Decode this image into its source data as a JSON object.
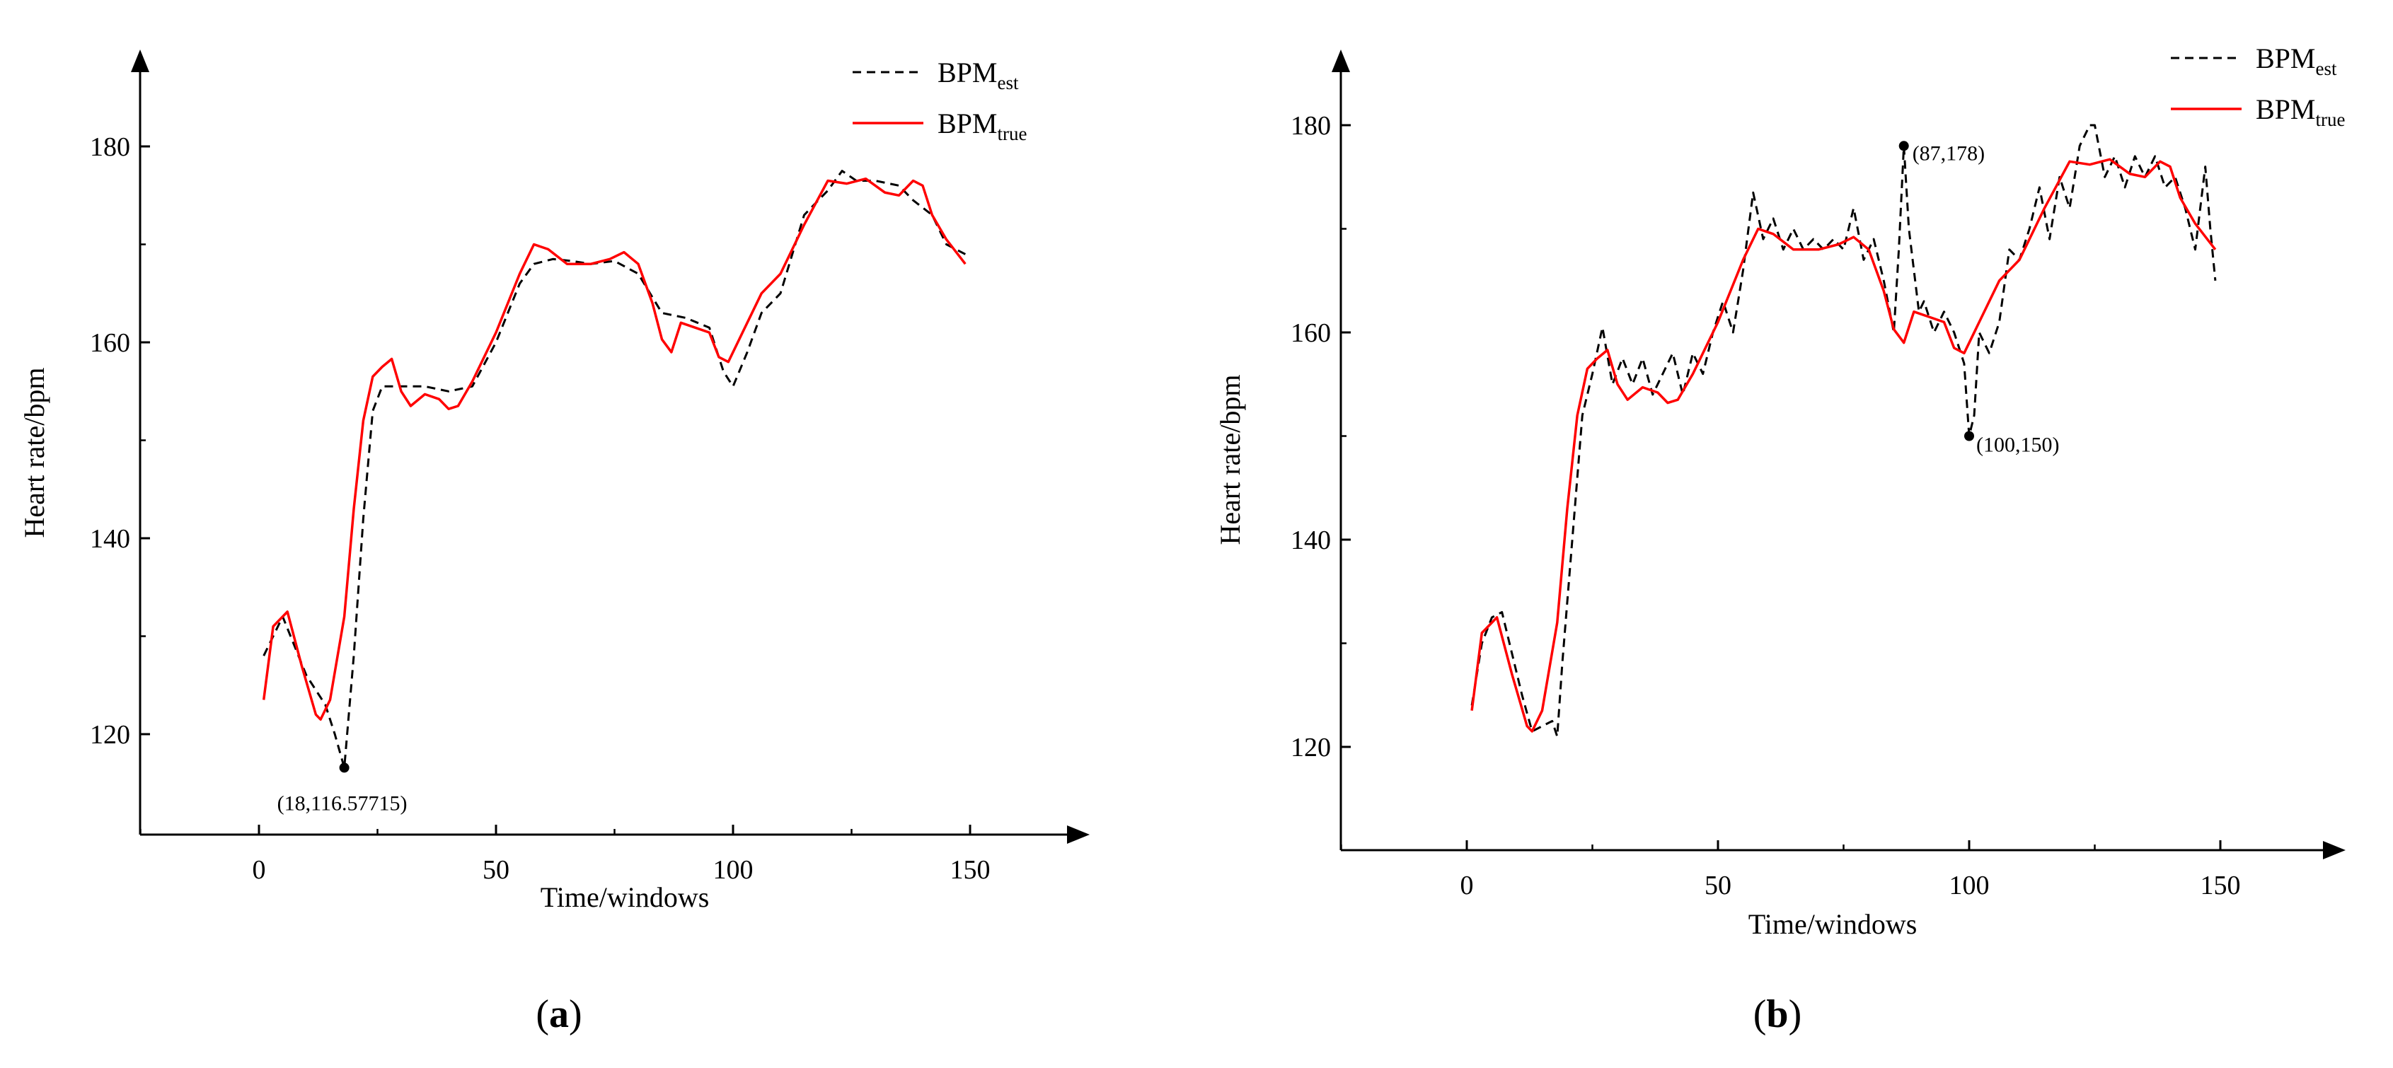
{
  "colors": {
    "est": "#000000",
    "true": "#ff0000",
    "axis": "#000000"
  },
  "chart_data": [
    {
      "type": "line",
      "panel_label": "a",
      "xlabel": "Time/windows",
      "ylabel": "Heart rate/bpm",
      "xlim": [
        -25,
        175
      ],
      "ylim": [
        110,
        190
      ],
      "xticks": [
        0,
        50,
        100,
        150
      ],
      "yticks": [
        120,
        140,
        160,
        180
      ],
      "legend_position": "top-right",
      "series": [
        {
          "name": "BPM",
          "subscript": "est",
          "style": "dashed",
          "color": "#000000",
          "x": [
            1,
            5,
            10,
            14,
            16,
            18,
            20,
            22,
            24,
            26,
            30,
            35,
            40,
            45,
            50,
            55,
            58,
            62,
            66,
            70,
            75,
            80,
            85,
            90,
            95,
            98,
            100,
            103,
            106,
            110,
            115,
            120,
            123,
            126,
            130,
            135,
            138,
            142,
            145,
            149
          ],
          "y": [
            128,
            132,
            126,
            123,
            120,
            116.57715,
            128,
            142,
            153,
            155.5,
            155.5,
            155.5,
            155,
            155.5,
            160,
            166,
            168,
            168.5,
            168.3,
            168,
            168.3,
            167,
            163,
            162.5,
            161.5,
            157,
            155.5,
            159,
            163,
            165,
            173,
            175.5,
            177.5,
            176.5,
            176.5,
            176,
            174.5,
            173,
            170,
            169
          ]
        },
        {
          "name": "BPM",
          "subscript": "true",
          "style": "solid",
          "color": "#ff0000",
          "x": [
            1,
            3,
            6,
            9,
            12,
            13,
            15,
            18,
            20,
            22,
            24,
            26,
            28,
            30,
            32,
            35,
            38,
            40,
            42,
            45,
            50,
            55,
            58,
            61,
            65,
            70,
            74,
            77,
            80,
            83,
            85,
            87,
            89,
            92,
            95,
            97,
            99,
            102,
            106,
            110,
            115,
            120,
            124,
            128,
            132,
            135,
            138,
            140,
            142,
            145,
            149
          ],
          "y": [
            123.5,
            131,
            132.5,
            127,
            122,
            121.5,
            123.5,
            132,
            143,
            152,
            156.5,
            157.5,
            158.3,
            155,
            153.5,
            154.7,
            154.2,
            153.2,
            153.5,
            156,
            161,
            167,
            170,
            169.5,
            168,
            168,
            168.5,
            169.2,
            168,
            164,
            160.3,
            159,
            162,
            161.5,
            161,
            158.5,
            158,
            161,
            165,
            167,
            172,
            176.5,
            176.2,
            176.7,
            175.3,
            175,
            176.5,
            176,
            173,
            170.5,
            168
          ]
        }
      ],
      "annotations": [
        {
          "label": "(18,116.57715)",
          "x": 18,
          "y": 116.57715
        }
      ]
    },
    {
      "type": "line",
      "panel_label": "b",
      "xlabel": "Time/windows",
      "ylabel": "Heart rate/bpm",
      "xlim": [
        -25,
        175
      ],
      "ylim": [
        110,
        190
      ],
      "xticks": [
        0,
        50,
        100,
        150
      ],
      "yticks": [
        120,
        140,
        160,
        180
      ],
      "legend_position": "top-right",
      "series": [
        {
          "name": "BPM",
          "subscript": "est",
          "style": "dashed",
          "color": "#000000",
          "x": [
            1,
            3,
            5,
            7,
            9,
            11,
            13,
            15,
            17,
            18,
            19,
            21,
            23,
            25,
            27,
            29,
            31,
            33,
            35,
            37,
            39,
            41,
            43,
            45,
            47,
            49,
            51,
            53,
            55,
            57,
            59,
            61,
            63,
            65,
            67,
            69,
            71,
            73,
            75,
            77,
            79,
            81,
            83,
            85,
            86,
            87,
            88,
            89,
            90,
            91,
            93,
            95,
            97,
            99,
            100,
            101,
            102,
            104,
            106,
            108,
            110,
            112,
            114,
            116,
            118,
            120,
            122,
            124,
            125,
            127,
            129,
            131,
            133,
            135,
            137,
            139,
            141,
            143,
            145,
            147,
            148,
            149
          ],
          "y": [
            124,
            130,
            132.5,
            133,
            129,
            125,
            121.5,
            122,
            122.5,
            121,
            128,
            140,
            152,
            156,
            160.5,
            155,
            157.5,
            155,
            157.5,
            154,
            156,
            158,
            154,
            158,
            156,
            160,
            163,
            160,
            166,
            173.5,
            169,
            171,
            168,
            170,
            168,
            169,
            168,
            169,
            168,
            172,
            167,
            169,
            165,
            160,
            168,
            178,
            170,
            166,
            162,
            163,
            160,
            162,
            160,
            157,
            150,
            152,
            160,
            158,
            161,
            168,
            167,
            170,
            174,
            169,
            175,
            172,
            178,
            180,
            180,
            175,
            177,
            174,
            177,
            175,
            177,
            174,
            175,
            172,
            168,
            176,
            170,
            165
          ]
        },
        {
          "name": "BPM",
          "subscript": "true",
          "style": "solid",
          "color": "#ff0000",
          "x": [
            1,
            3,
            6,
            9,
            12,
            13,
            15,
            18,
            20,
            22,
            24,
            26,
            28,
            30,
            32,
            35,
            38,
            40,
            42,
            45,
            50,
            55,
            58,
            61,
            65,
            70,
            74,
            77,
            80,
            83,
            85,
            87,
            89,
            92,
            95,
            97,
            99,
            102,
            106,
            110,
            115,
            120,
            124,
            128,
            132,
            135,
            138,
            140,
            142,
            145,
            149
          ],
          "y": [
            123.5,
            131,
            132.5,
            127,
            122,
            121.5,
            123.5,
            132,
            143,
            152,
            156.5,
            157.5,
            158.3,
            155,
            153.5,
            154.7,
            154.2,
            153.2,
            153.5,
            156,
            161,
            167,
            170,
            169.5,
            168,
            168,
            168.5,
            169.2,
            168,
            164,
            160.3,
            159,
            162,
            161.5,
            161,
            158.5,
            158,
            161,
            165,
            167,
            172,
            176.5,
            176.2,
            176.7,
            175.3,
            175,
            176.5,
            176,
            173,
            170.5,
            168
          ]
        }
      ],
      "annotations": [
        {
          "label": "(87,178)",
          "x": 87,
          "y": 178
        },
        {
          "label": "(100,150)",
          "x": 100,
          "y": 150
        }
      ]
    }
  ]
}
